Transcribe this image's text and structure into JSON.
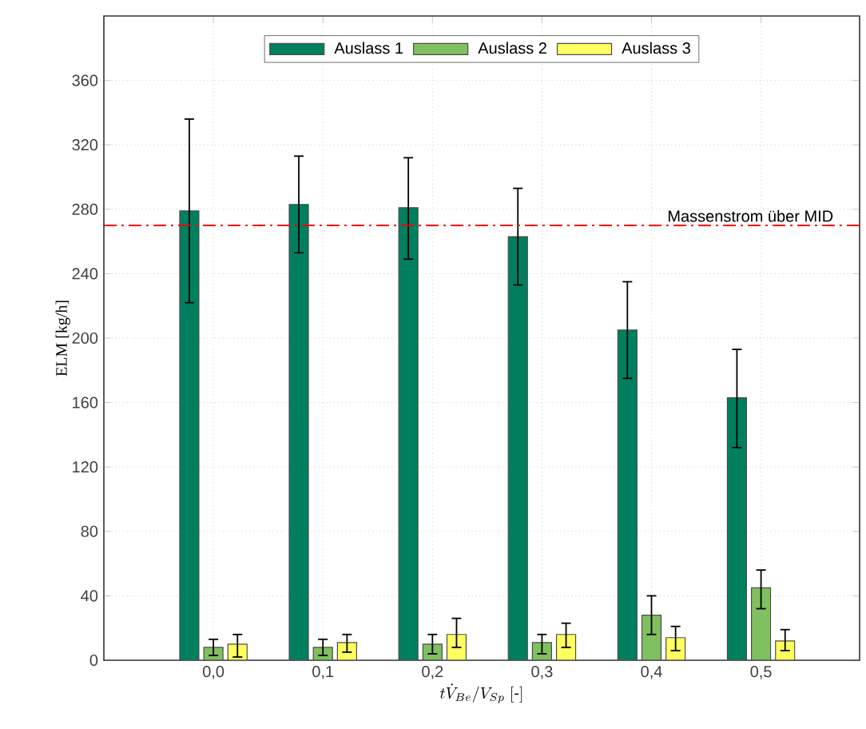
{
  "chart_data": {
    "type": "bar",
    "xlabel": "t\\dot{V}_{Be}/V_{Sp}\\ [\\textrm{-}]",
    "ylabel": "ELM [kg/h]",
    "categories": [
      "0,0",
      "0,1",
      "0,2",
      "0,3",
      "0,4",
      "0,5"
    ],
    "series": [
      {
        "name": "Auslass 1",
        "color": "#007f5f",
        "values": [
          279,
          283,
          281,
          263,
          205,
          163
        ],
        "errors": [
          [
            222,
            336
          ],
          [
            253,
            313
          ],
          [
            249,
            312
          ],
          [
            233,
            293
          ],
          [
            175,
            235
          ],
          [
            132,
            193
          ]
        ]
      },
      {
        "name": "Auslass 2",
        "color": "#80c060",
        "values": [
          8,
          8,
          10,
          11,
          28,
          45
        ],
        "errors": [
          [
            3,
            13
          ],
          [
            3,
            13
          ],
          [
            4,
            16
          ],
          [
            4,
            16
          ],
          [
            16,
            40
          ],
          [
            32,
            56
          ]
        ]
      },
      {
        "name": "Auslass 3",
        "color": "#ffff60",
        "values": [
          10,
          11,
          16,
          16,
          14,
          12
        ],
        "errors": [
          [
            2,
            16
          ],
          [
            5,
            16
          ],
          [
            8,
            26
          ],
          [
            8,
            23
          ],
          [
            6,
            21
          ],
          [
            6,
            19
          ]
        ]
      }
    ],
    "ylim": [
      0,
      400
    ],
    "yticks": [
      0,
      40,
      80,
      120,
      160,
      200,
      240,
      280,
      320,
      360
    ],
    "ref_lines": [
      {
        "axis": "y",
        "value": 270,
        "label": "Massenstrom über MID",
        "color": "#ff0000",
        "line_style": "dashdot"
      }
    ],
    "grid": true,
    "legend": "top"
  }
}
